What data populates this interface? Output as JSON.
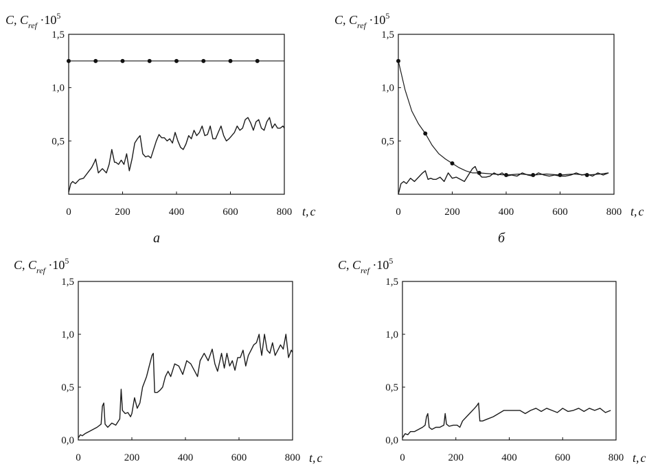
{
  "chart_data": [
    {
      "type": "line",
      "panel_label": "а",
      "ylabel": {
        "main": "C, C",
        "sub": "ref",
        "mult": " ·10",
        "exp": "5"
      },
      "xlabel": {
        "var": "t,",
        "unit": "с"
      },
      "xlim": [
        0,
        800
      ],
      "ylim": [
        0,
        1.5
      ],
      "xticks": [
        "0",
        "200",
        "400",
        "600",
        "800"
      ],
      "xtick_values": [
        0,
        200,
        400,
        600,
        800
      ],
      "yticks": [
        "0,5",
        "1,0",
        "1,5"
      ],
      "ytick_values": [
        0.5,
        1.0,
        1.5
      ],
      "series": [
        {
          "role": "reference",
          "markers": true,
          "x": [
            0,
            100,
            200,
            300,
            400,
            500,
            600,
            700,
            800
          ],
          "y": [
            1.25,
            1.25,
            1.25,
            1.25,
            1.25,
            1.25,
            1.25,
            1.25,
            1.25
          ],
          "marker_x": [
            0,
            100,
            200,
            300,
            400,
            500,
            600,
            700
          ]
        },
        {
          "role": "measured",
          "markers": false,
          "x": [
            0,
            8,
            15,
            25,
            40,
            55,
            70,
            85,
            95,
            100,
            110,
            125,
            140,
            150,
            160,
            170,
            175,
            185,
            195,
            205,
            215,
            225,
            235,
            245,
            255,
            265,
            275,
            285,
            295,
            305,
            315,
            325,
            335,
            345,
            355,
            365,
            375,
            385,
            395,
            405,
            415,
            425,
            435,
            445,
            455,
            465,
            475,
            485,
            495,
            505,
            515,
            525,
            535,
            545,
            555,
            565,
            575,
            585,
            595,
            605,
            615,
            625,
            635,
            645,
            655,
            665,
            675,
            685,
            695,
            705,
            715,
            725,
            735,
            745,
            755,
            765,
            775,
            785,
            795,
            800
          ],
          "y": [
            0.02,
            0.1,
            0.12,
            0.1,
            0.14,
            0.15,
            0.2,
            0.25,
            0.3,
            0.33,
            0.2,
            0.24,
            0.2,
            0.28,
            0.42,
            0.3,
            0.3,
            0.28,
            0.32,
            0.28,
            0.38,
            0.22,
            0.33,
            0.48,
            0.52,
            0.55,
            0.38,
            0.35,
            0.36,
            0.34,
            0.42,
            0.5,
            0.56,
            0.53,
            0.53,
            0.5,
            0.52,
            0.48,
            0.58,
            0.5,
            0.44,
            0.42,
            0.47,
            0.55,
            0.52,
            0.6,
            0.55,
            0.58,
            0.64,
            0.55,
            0.56,
            0.64,
            0.52,
            0.52,
            0.58,
            0.64,
            0.55,
            0.5,
            0.52,
            0.55,
            0.58,
            0.64,
            0.6,
            0.62,
            0.7,
            0.72,
            0.67,
            0.6,
            0.68,
            0.7,
            0.62,
            0.6,
            0.68,
            0.72,
            0.62,
            0.66,
            0.62,
            0.62,
            0.64,
            0.62
          ]
        }
      ]
    },
    {
      "type": "line",
      "panel_label": "б",
      "ylabel": {
        "main": "C, C",
        "sub": "ref",
        "mult": " ·10",
        "exp": "5"
      },
      "xlabel": {
        "var": "t,",
        "unit": "с"
      },
      "xlim": [
        0,
        800
      ],
      "ylim": [
        0,
        1.5
      ],
      "xticks": [
        "0",
        "200",
        "400",
        "600",
        "800"
      ],
      "xtick_values": [
        0,
        200,
        400,
        600,
        800
      ],
      "yticks": [
        "0,5",
        "1,0",
        "1,5"
      ],
      "ytick_values": [
        0.5,
        1.0,
        1.5
      ],
      "series": [
        {
          "role": "reference",
          "markers": true,
          "x": [
            0,
            25,
            50,
            75,
            100,
            125,
            150,
            175,
            200,
            225,
            250,
            275,
            300,
            350,
            400,
            450,
            500,
            550,
            600,
            650,
            700,
            750,
            780
          ],
          "y": [
            1.25,
            0.98,
            0.78,
            0.66,
            0.57,
            0.46,
            0.38,
            0.33,
            0.29,
            0.25,
            0.22,
            0.2,
            0.2,
            0.19,
            0.18,
            0.19,
            0.18,
            0.19,
            0.18,
            0.19,
            0.18,
            0.19,
            0.2
          ],
          "marker_x": [
            0,
            100,
            200,
            300,
            400,
            500,
            600,
            700
          ],
          "marker_y": [
            1.25,
            0.57,
            0.29,
            0.2,
            0.18,
            0.18,
            0.18,
            0.18
          ]
        },
        {
          "role": "measured",
          "markers": false,
          "x": [
            0,
            10,
            20,
            30,
            45,
            60,
            75,
            90,
            100,
            110,
            120,
            130,
            140,
            155,
            170,
            185,
            200,
            215,
            230,
            245,
            260,
            275,
            285,
            295,
            310,
            325,
            340,
            355,
            370,
            385,
            400,
            420,
            440,
            460,
            480,
            500,
            520,
            540,
            560,
            580,
            600,
            620,
            640,
            660,
            680,
            700,
            720,
            740,
            760,
            780
          ],
          "y": [
            0.0,
            0.1,
            0.12,
            0.1,
            0.15,
            0.12,
            0.16,
            0.2,
            0.22,
            0.14,
            0.15,
            0.14,
            0.14,
            0.16,
            0.12,
            0.2,
            0.15,
            0.16,
            0.14,
            0.12,
            0.18,
            0.24,
            0.26,
            0.2,
            0.16,
            0.16,
            0.17,
            0.2,
            0.18,
            0.2,
            0.17,
            0.18,
            0.17,
            0.2,
            0.18,
            0.17,
            0.2,
            0.18,
            0.17,
            0.18,
            0.17,
            0.17,
            0.18,
            0.2,
            0.18,
            0.19,
            0.17,
            0.2,
            0.18,
            0.2
          ]
        }
      ]
    },
    {
      "type": "line",
      "panel_label": "",
      "ylabel": {
        "main": "C, C",
        "sub": "ref",
        "mult": " ·10",
        "exp": "5"
      },
      "xlabel": {
        "var": "t,",
        "unit": "с"
      },
      "xlim": [
        0,
        800
      ],
      "ylim": [
        0,
        1.5
      ],
      "xticks": [
        "0",
        "200",
        "400",
        "600",
        "800"
      ],
      "xtick_values": [
        0,
        200,
        400,
        600,
        800
      ],
      "yticks": [
        "0,0",
        "0,5",
        "1,0",
        "1,5"
      ],
      "ytick_values": [
        0.0,
        0.5,
        1.0,
        1.5
      ],
      "series": [
        {
          "role": "measured",
          "markers": false,
          "x": [
            0,
            8,
            15,
            25,
            40,
            55,
            70,
            85,
            90,
            95,
            100,
            110,
            125,
            140,
            155,
            160,
            165,
            175,
            185,
            195,
            200,
            210,
            220,
            230,
            240,
            255,
            265,
            275,
            280,
            285,
            295,
            305,
            315,
            325,
            335,
            345,
            360,
            375,
            390,
            405,
            420,
            435,
            445,
            455,
            470,
            485,
            500,
            510,
            520,
            535,
            545,
            555,
            565,
            575,
            585,
            595,
            605,
            615,
            625,
            635,
            645,
            655,
            665,
            675,
            680,
            685,
            695,
            705,
            715,
            725,
            735,
            745,
            755,
            765,
            775,
            785,
            795,
            800
          ],
          "y": [
            0.02,
            0.05,
            0.04,
            0.06,
            0.08,
            0.1,
            0.12,
            0.15,
            0.32,
            0.35,
            0.15,
            0.12,
            0.16,
            0.14,
            0.2,
            0.48,
            0.28,
            0.25,
            0.26,
            0.22,
            0.25,
            0.4,
            0.3,
            0.35,
            0.5,
            0.6,
            0.7,
            0.8,
            0.82,
            0.45,
            0.45,
            0.47,
            0.5,
            0.6,
            0.65,
            0.6,
            0.72,
            0.7,
            0.62,
            0.75,
            0.72,
            0.65,
            0.6,
            0.75,
            0.82,
            0.75,
            0.86,
            0.72,
            0.65,
            0.82,
            0.68,
            0.82,
            0.7,
            0.75,
            0.66,
            0.78,
            0.78,
            0.85,
            0.7,
            0.8,
            0.85,
            0.9,
            0.92,
            1.0,
            0.88,
            0.8,
            1.0,
            0.85,
            0.82,
            0.92,
            0.8,
            0.85,
            0.9,
            0.86,
            1.0,
            0.78,
            0.85,
            0.83
          ]
        }
      ]
    },
    {
      "type": "line",
      "panel_label": "",
      "ylabel": {
        "main": "C, C",
        "sub": "ref",
        "mult": " ·10",
        "exp": "5"
      },
      "xlabel": {
        "var": "t,",
        "unit": "с"
      },
      "xlim": [
        0,
        800
      ],
      "ylim": [
        0,
        1.5
      ],
      "xticks": [
        "0",
        "200",
        "400",
        "600",
        "800"
      ],
      "xtick_values": [
        0,
        200,
        400,
        600,
        800
      ],
      "yticks": [
        "0,0",
        "0,5",
        "1,0",
        "1,5"
      ],
      "ytick_values": [
        0.0,
        0.5,
        1.0,
        1.5
      ],
      "series": [
        {
          "role": "measured",
          "markers": false,
          "x": [
            0,
            10,
            20,
            30,
            45,
            60,
            75,
            85,
            90,
            95,
            100,
            110,
            125,
            140,
            155,
            160,
            165,
            175,
            190,
            205,
            215,
            225,
            240,
            255,
            270,
            280,
            285,
            290,
            300,
            320,
            340,
            360,
            380,
            400,
            420,
            440,
            460,
            480,
            500,
            520,
            540,
            560,
            580,
            600,
            620,
            640,
            660,
            680,
            700,
            720,
            740,
            760,
            780
          ],
          "y": [
            0.02,
            0.06,
            0.05,
            0.08,
            0.08,
            0.1,
            0.12,
            0.14,
            0.22,
            0.25,
            0.12,
            0.1,
            0.12,
            0.12,
            0.14,
            0.25,
            0.15,
            0.13,
            0.14,
            0.14,
            0.12,
            0.18,
            0.22,
            0.26,
            0.3,
            0.33,
            0.35,
            0.18,
            0.18,
            0.2,
            0.22,
            0.25,
            0.28,
            0.28,
            0.28,
            0.28,
            0.25,
            0.28,
            0.3,
            0.27,
            0.3,
            0.28,
            0.26,
            0.3,
            0.27,
            0.28,
            0.3,
            0.27,
            0.3,
            0.28,
            0.3,
            0.26,
            0.28
          ]
        }
      ]
    }
  ]
}
